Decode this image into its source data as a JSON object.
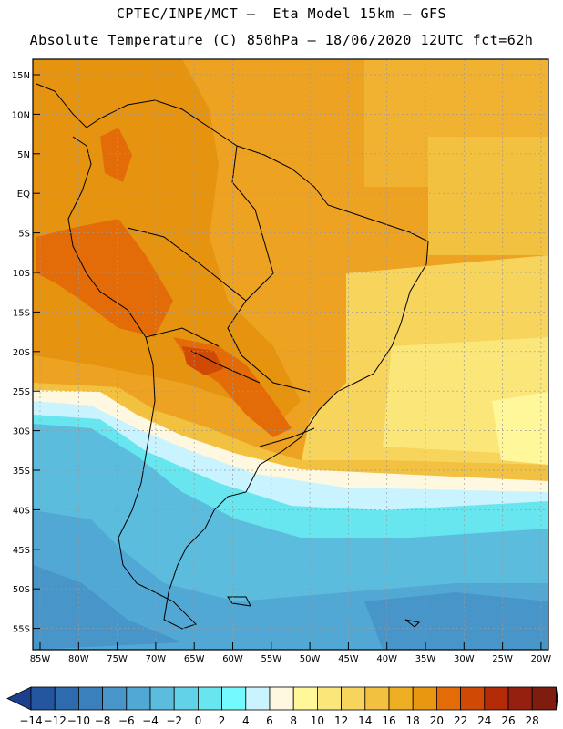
{
  "header": {
    "line1": "CPTEC/INPE/MCT –  Eta Model 15km – GFS",
    "line2": "Absolute Temperature (C) 850hPa – 18/06/2020 12UTC fct=62h"
  },
  "map": {
    "lat_labels": [
      "15N",
      "10N",
      "5N",
      "EQ",
      "5S",
      "10S",
      "15S",
      "20S",
      "25S",
      "30S",
      "35S",
      "40S",
      "45S",
      "50S",
      "55S"
    ],
    "lon_labels": [
      "85W",
      "80W",
      "75W",
      "70W",
      "65W",
      "60W",
      "55W",
      "50W",
      "45W",
      "40W",
      "35W",
      "30W",
      "25W",
      "20W"
    ]
  },
  "colorbar": {
    "labels": [
      "-14",
      "-12",
      "-10",
      "-8",
      "-6",
      "-4",
      "-2",
      "0",
      "2",
      "4",
      "6",
      "8",
      "10",
      "12",
      "14",
      "16",
      "18",
      "20",
      "22",
      "24",
      "26",
      "28"
    ],
    "colors": [
      "#1c3e8c",
      "#24569f",
      "#2d6aae",
      "#3a80bd",
      "#4795c9",
      "#51a8d4",
      "#5bbcde",
      "#62d2e8",
      "#68e6f0",
      "#72faff",
      "#c9f4ff",
      "#fff8e0",
      "#fff799",
      "#fbe67a",
      "#f7d45c",
      "#f2c13f",
      "#eeae22",
      "#e99710",
      "#e36c08",
      "#d04a05",
      "#b42b07",
      "#952010",
      "#7e1c10",
      "#800026"
    ]
  }
}
